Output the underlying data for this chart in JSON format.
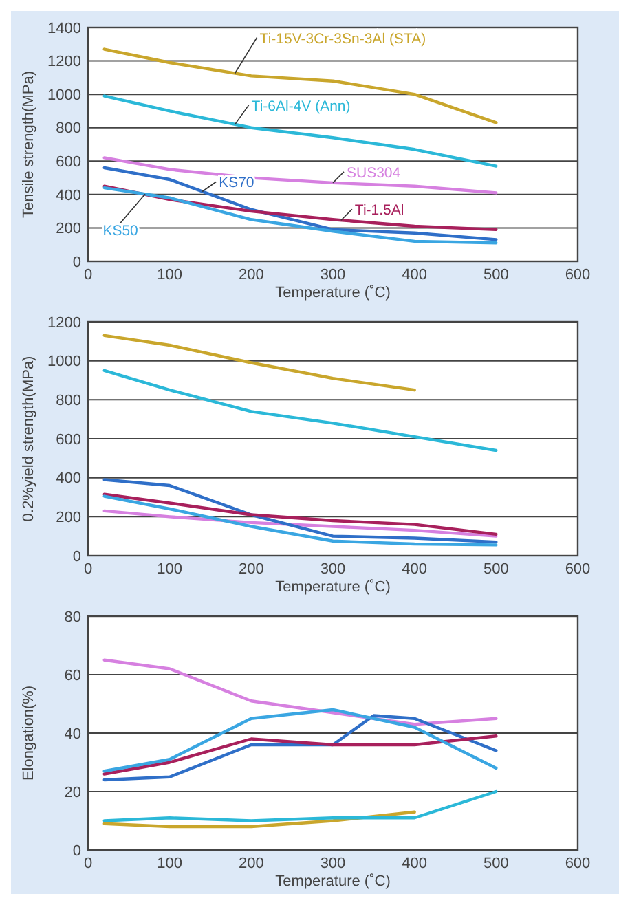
{
  "chart_data": [
    {
      "type": "line",
      "xlabel": "Temperature (˚C)",
      "ylabel": "Tensile strength(MPa)",
      "x": [
        20,
        100,
        200,
        300,
        400,
        500
      ],
      "xlim": [
        0,
        600
      ],
      "xticks": [
        0,
        100,
        200,
        300,
        400,
        500,
        600
      ],
      "ylim": [
        0,
        1400
      ],
      "yticks": [
        0,
        200,
        400,
        600,
        800,
        1000,
        1200,
        1400
      ],
      "grid": "y",
      "series": [
        {
          "name": "Ti-15V-3Cr-3Sn-3Al (STA)",
          "color": "#c9a62c",
          "values": [
            1270,
            1190,
            1110,
            1080,
            1000,
            830
          ]
        },
        {
          "name": "Ti-6Al-4V (Ann)",
          "color": "#2bb8d8",
          "values": [
            990,
            900,
            800,
            740,
            670,
            570
          ]
        },
        {
          "name": "SUS304",
          "color": "#d680e0",
          "values": [
            620,
            550,
            500,
            470,
            450,
            410
          ]
        },
        {
          "name": "KS70",
          "color": "#2f6fc8",
          "values": [
            560,
            490,
            310,
            190,
            170,
            130
          ]
        },
        {
          "name": "Ti-1.5Al",
          "color": "#a8205c",
          "values": [
            450,
            370,
            300,
            250,
            210,
            190
          ]
        },
        {
          "name": "KS50",
          "color": "#3aa6e2",
          "values": [
            440,
            380,
            250,
            180,
            120,
            110
          ]
        }
      ]
    },
    {
      "type": "line",
      "xlabel": "Temperature (˚C)",
      "ylabel": "0.2%yield strength(MPa)",
      "x": [
        20,
        100,
        200,
        300,
        400,
        500
      ],
      "xlim": [
        0,
        600
      ],
      "xticks": [
        0,
        100,
        200,
        300,
        400,
        500,
        600
      ],
      "ylim": [
        0,
        1200
      ],
      "yticks": [
        0,
        200,
        400,
        600,
        800,
        1000,
        1200
      ],
      "grid": "y",
      "series": [
        {
          "color": "#c9a62c",
          "x": [
            20,
            100,
            200,
            300,
            400
          ],
          "values": [
            1130,
            1080,
            990,
            910,
            850
          ]
        },
        {
          "color": "#2bb8d8",
          "values": [
            950,
            850,
            740,
            680,
            610,
            540
          ]
        },
        {
          "color": "#d680e0",
          "values": [
            230,
            200,
            170,
            150,
            130,
            100
          ]
        },
        {
          "color": "#2f6fc8",
          "values": [
            390,
            360,
            210,
            100,
            90,
            70
          ]
        },
        {
          "color": "#a8205c",
          "values": [
            315,
            270,
            210,
            180,
            160,
            110
          ]
        },
        {
          "color": "#3aa6e2",
          "values": [
            305,
            240,
            150,
            75,
            60,
            55
          ]
        }
      ]
    },
    {
      "type": "line",
      "xlabel": "Temperature (˚C)",
      "ylabel": "Elongation(%)",
      "x": [
        20,
        100,
        200,
        300,
        400,
        500
      ],
      "xlim": [
        0,
        600
      ],
      "xticks": [
        0,
        100,
        200,
        300,
        400,
        500,
        600
      ],
      "ylim": [
        0,
        80
      ],
      "yticks": [
        0,
        20,
        40,
        60,
        80
      ],
      "grid": "y",
      "series": [
        {
          "color": "#c9a62c",
          "x": [
            20,
            100,
            200,
            300,
            400
          ],
          "values": [
            9,
            8,
            8,
            10,
            13
          ]
        },
        {
          "color": "#2bb8d8",
          "values": [
            10,
            11,
            10,
            11,
            11,
            20
          ]
        },
        {
          "color": "#d680e0",
          "values": [
            65,
            62,
            51,
            47,
            43,
            45
          ]
        },
        {
          "color": "#2f6fc8",
          "x": [
            20,
            100,
            200,
            300,
            350,
            400,
            500
          ],
          "values": [
            24,
            25,
            36,
            36,
            46,
            45,
            34
          ]
        },
        {
          "color": "#a8205c",
          "values": [
            26,
            30,
            38,
            36,
            36,
            39
          ]
        },
        {
          "color": "#3aa6e2",
          "values": [
            27,
            31,
            45,
            48,
            42,
            28
          ]
        }
      ]
    }
  ]
}
